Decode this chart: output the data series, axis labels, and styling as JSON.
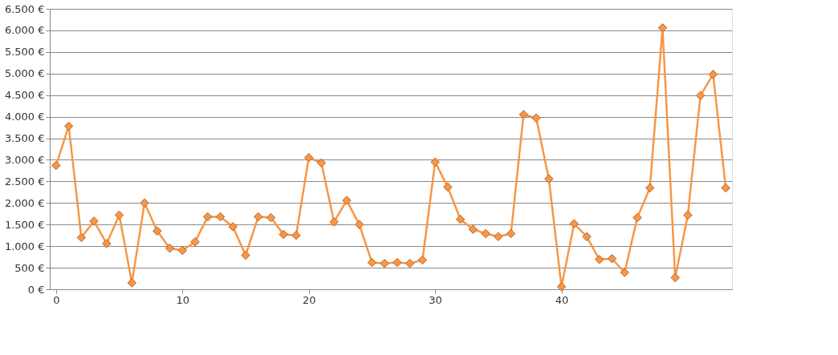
{
  "chart_data": {
    "type": "line",
    "x": [
      0,
      1,
      2,
      3,
      4,
      5,
      6,
      7,
      8,
      9,
      10,
      11,
      12,
      13,
      14,
      15,
      16,
      17,
      18,
      19,
      20,
      21,
      22,
      23,
      24,
      25,
      26,
      27,
      28,
      29,
      30,
      31,
      32,
      33,
      34,
      35,
      36,
      37,
      38,
      39,
      40,
      41,
      42,
      43,
      44,
      45,
      46,
      47,
      48,
      49,
      50,
      51,
      52,
      53
    ],
    "series": [
      {
        "color": "#f79646",
        "values": [
          2870,
          3780,
          1200,
          1580,
          1060,
          1720,
          150,
          2000,
          1350,
          950,
          900,
          1100,
          1680,
          1680,
          1450,
          790,
          1680,
          1660,
          1270,
          1250,
          3050,
          2930,
          1560,
          2060,
          1500,
          620,
          600,
          620,
          600,
          680,
          2950,
          2370,
          1620,
          1390,
          1290,
          1220,
          1290,
          4050,
          3970,
          2560,
          60,
          1520,
          1220,
          690,
          710,
          390,
          1660,
          2350,
          6060,
          270,
          1720,
          4490,
          4980,
          2350
        ]
      }
    ],
    "xlim": [
      -0.5,
      53.5
    ],
    "xticks": [
      0,
      10,
      20,
      30,
      40
    ],
    "ylim": [
      0,
      6500
    ],
    "yticks": [
      {
        "value": 0,
        "label": "0 €"
      },
      {
        "value": 500,
        "label": "500 €"
      },
      {
        "value": 1000,
        "label": "1.000 €"
      },
      {
        "value": 1500,
        "label": "1.500 €"
      },
      {
        "value": 2000,
        "label": "2.000 €"
      },
      {
        "value": 2500,
        "label": "2.500 €"
      },
      {
        "value": 3000,
        "label": "3.000 €"
      },
      {
        "value": 3500,
        "label": "3.500 €"
      },
      {
        "value": 4000,
        "label": "4.000 €"
      },
      {
        "value": 4500,
        "label": "4.500 €"
      },
      {
        "value": 5000,
        "label": "5.000 €"
      },
      {
        "value": 5500,
        "label": "5.500 €"
      },
      {
        "value": 6000,
        "label": "6.000 €"
      },
      {
        "value": 6500,
        "label": "6.500 €"
      }
    ],
    "grid": "y",
    "marker": "diamond",
    "line_style": "solid",
    "legend": false
  }
}
